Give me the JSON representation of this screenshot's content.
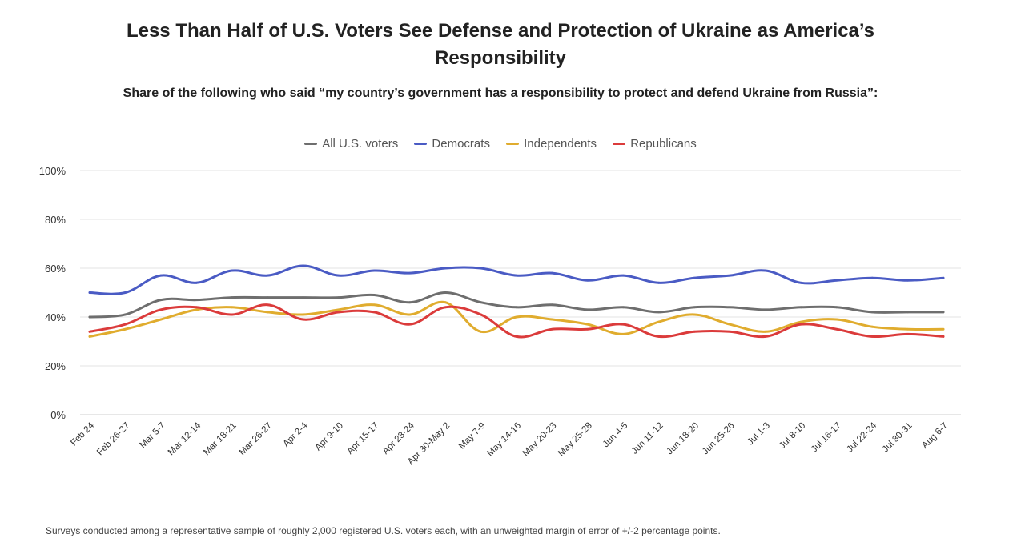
{
  "title_line1": "Less Than Half of U.S. Voters See Defense and Protection of Ukraine as America’s",
  "title_line2": "Responsibility",
  "subtitle": "Share of the following who said “my country’s government has a responsibility to protect and defend Ukraine from Russia”:",
  "footnote": "Surveys conducted among a representative sample of roughly 2,000 registered U.S. voters each, with an unweighted margin of error of +/-2 percentage points.",
  "chart_data": {
    "type": "line",
    "title": "Less Than Half of U.S. Voters See Defense and Protection of Ukraine as America’s Responsibility",
    "subtitle": "Share of the following who said “my country’s government has a responsibility to protect and defend Ukraine from Russia”:",
    "xlabel": "",
    "ylabel": "",
    "ylim": [
      0,
      100
    ],
    "y_ticks": [
      "0%",
      "20%",
      "40%",
      "60%",
      "80%",
      "100%"
    ],
    "grid": true,
    "legend_position": "top-center",
    "categories": [
      "Feb 24",
      "Feb 26-27",
      "Mar 5-7",
      "Mar 12-14",
      "Mar 18-21",
      "Mar 26-27",
      "Apr 2-4",
      "Apr 9-10",
      "Apr 15-17",
      "Apr 23-24",
      "Apr 30-May 2",
      "May 7-9",
      "May 14-16",
      "May 20-23",
      "May 25-28",
      "Jun 4-5",
      "Jun 11-12",
      "Jun 18-20",
      "Jun 25-26",
      "Jul 1-3",
      "Jul 8-10",
      "Jul 16-17",
      "Jul 22-24",
      "Jul 30-31",
      "Aug 6-7"
    ],
    "series": [
      {
        "name": "All U.S. voters",
        "color": "#6e6e6e",
        "values": [
          40,
          41,
          47,
          47,
          48,
          48,
          48,
          48,
          49,
          46,
          50,
          46,
          44,
          45,
          43,
          44,
          42,
          44,
          44,
          43,
          44,
          44,
          42,
          42,
          42
        ]
      },
      {
        "name": "Democrats",
        "color": "#4a5bc4",
        "values": [
          50,
          50,
          57,
          54,
          59,
          57,
          61,
          57,
          59,
          58,
          60,
          60,
          57,
          58,
          55,
          57,
          54,
          56,
          57,
          59,
          54,
          55,
          56,
          55,
          56
        ]
      },
      {
        "name": "Independents",
        "color": "#e0ac2e",
        "values": [
          32,
          35,
          39,
          43,
          44,
          42,
          41,
          43,
          45,
          41,
          46,
          34,
          40,
          39,
          37,
          33,
          38,
          41,
          37,
          34,
          38,
          39,
          36,
          35,
          35
        ]
      },
      {
        "name": "Republicans",
        "color": "#db3b3b",
        "values": [
          34,
          37,
          43,
          44,
          41,
          45,
          39,
          42,
          42,
          37,
          44,
          41,
          32,
          35,
          35,
          37,
          32,
          34,
          34,
          32,
          37,
          35,
          32,
          33,
          32
        ]
      }
    ]
  }
}
